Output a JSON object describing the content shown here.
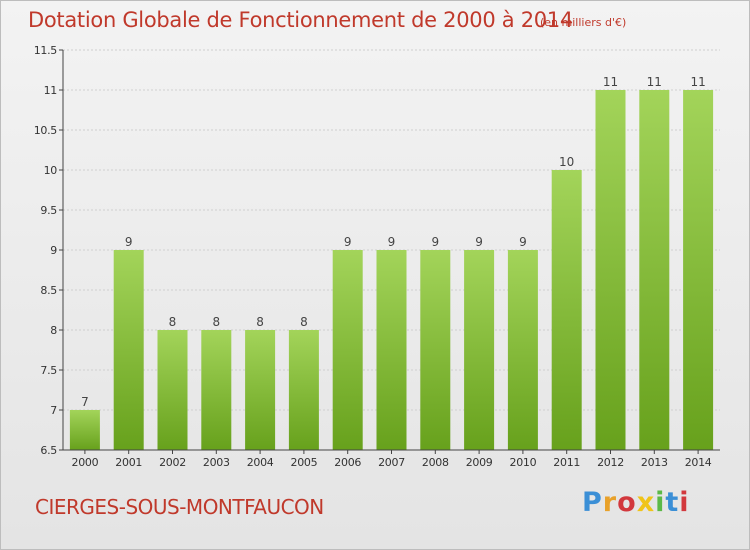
{
  "header": {
    "title": "Dotation Globale de Fonctionnement de 2000 à 2014",
    "unit": "(en milliers d'€)"
  },
  "footer": {
    "commune": "CIERGES-SOUS-MONTFAUCON",
    "logo": "Proxiti"
  },
  "colors": {
    "title": "#c0392b",
    "bar_light": "#9ccf4f",
    "bar_dark": "#6aa01e",
    "axis": "#444444",
    "grid": "#c9c9c9"
  },
  "chart_data": {
    "type": "bar",
    "title": "Dotation Globale de Fonctionnement de 2000 à 2014",
    "subtitle": "(en milliers d'€)",
    "xlabel": "",
    "ylabel": "",
    "categories": [
      "2000",
      "2001",
      "2002",
      "2003",
      "2004",
      "2005",
      "2006",
      "2007",
      "2008",
      "2009",
      "2010",
      "2011",
      "2012",
      "2013",
      "2014"
    ],
    "values": [
      7,
      9,
      8,
      8,
      8,
      8,
      9,
      9,
      9,
      9,
      9,
      10,
      11,
      11,
      11
    ],
    "data_labels": [
      "7",
      "9",
      "8",
      "8",
      "8",
      "8",
      "9",
      "9",
      "9",
      "9",
      "9",
      "10",
      "11",
      "11",
      "11"
    ],
    "ylim": [
      6.5,
      11.5
    ],
    "yticks": [
      6.5,
      7,
      7.5,
      8,
      8.5,
      9,
      9.5,
      10,
      10.5,
      11,
      11.5
    ],
    "ytick_labels": [
      "6.5",
      "7",
      "7.5",
      "8",
      "8.5",
      "9",
      "9.5",
      "10",
      "10.5",
      "11",
      "11.5"
    ],
    "grid": true,
    "legend": "none"
  }
}
